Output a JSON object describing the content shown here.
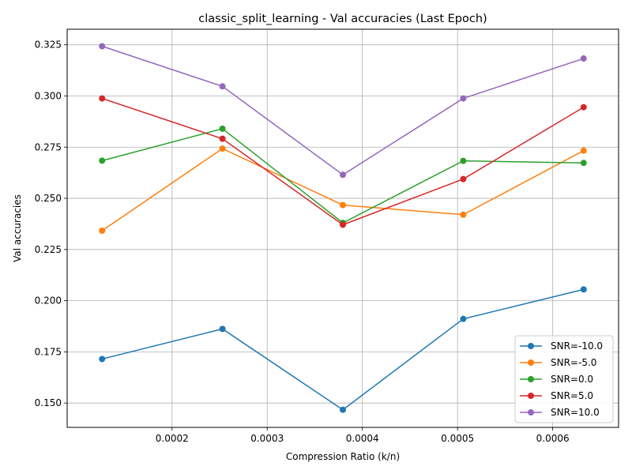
{
  "chart_data": {
    "type": "line",
    "title": "classic_split_learning - Val accuracies (Last Epoch)",
    "xlabel": "Compression Ratio (k/n)",
    "ylabel": "Val accuracies",
    "x": [
      0.0001265,
      0.000253,
      0.0003795,
      0.000506,
      0.0006325
    ],
    "xlim": [
      8.98e-05,
      0.0006692
    ],
    "ylim": [
      0.1381,
      0.3326
    ],
    "xticks": [
      "0.0002",
      "0.0003",
      "0.0004",
      "0.0005",
      "0.0006"
    ],
    "xtick_values": [
      0.0002,
      0.0003,
      0.0004,
      0.0005,
      0.0006
    ],
    "yticks": [
      "0.150",
      "0.175",
      "0.200",
      "0.225",
      "0.250",
      "0.275",
      "0.300",
      "0.325"
    ],
    "ytick_values": [
      0.15,
      0.175,
      0.2,
      0.225,
      0.25,
      0.275,
      0.3,
      0.325
    ],
    "grid": true,
    "legend_position": "lower right",
    "series": [
      {
        "name": "SNR=-10.0",
        "color": "#1f77b4",
        "values": [
          0.1715,
          0.1862,
          0.1467,
          0.1911,
          0.2055
        ]
      },
      {
        "name": "SNR=-5.0",
        "color": "#ff7f0e",
        "values": [
          0.2342,
          0.2743,
          0.2467,
          0.242,
          0.2733
        ]
      },
      {
        "name": "SNR=0.0",
        "color": "#2ca02c",
        "values": [
          0.2684,
          0.284,
          0.238,
          0.2683,
          0.2673
        ]
      },
      {
        "name": "SNR=5.0",
        "color": "#d62728",
        "values": [
          0.2988,
          0.2791,
          0.2371,
          0.2594,
          0.2945
        ]
      },
      {
        "name": "SNR=10.0",
        "color": "#9467bd",
        "values": [
          0.3243,
          0.3047,
          0.2615,
          0.2988,
          0.3183
        ]
      }
    ]
  }
}
